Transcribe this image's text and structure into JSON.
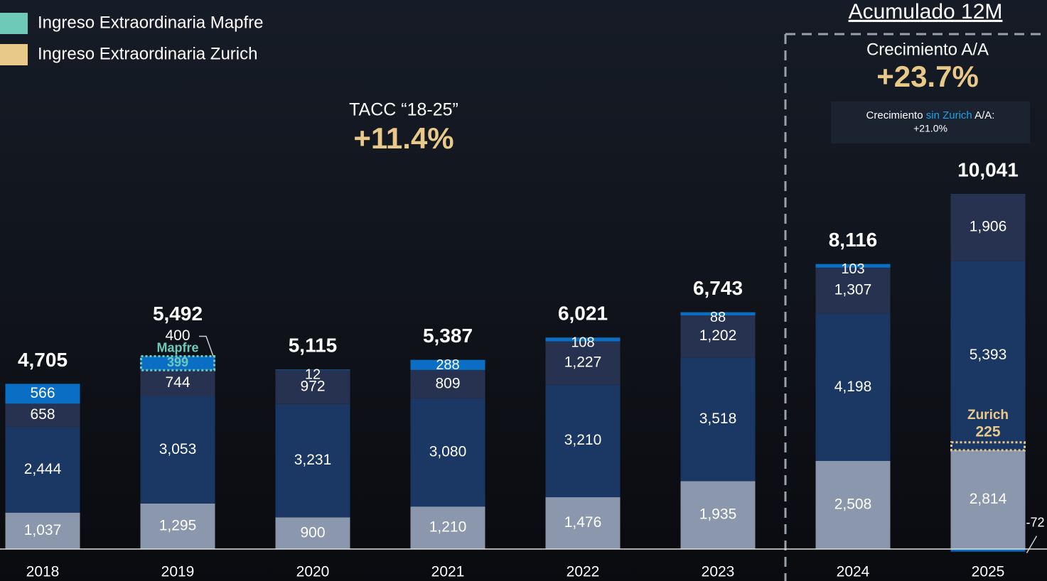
{
  "chart_data": {
    "type": "bar",
    "stacked": true,
    "categories": [
      "2018",
      "2019",
      "2020",
      "2021",
      "2022",
      "2023",
      "2024",
      "2025"
    ],
    "series": [
      {
        "color": "#8b97ac",
        "values": [
          1037,
          1295,
          900,
          1210,
          1476,
          1935,
          2508,
          2814
        ],
        "value_labels": [
          "1,037",
          "1,295",
          "900",
          "1,210",
          "1,476",
          "1,935",
          "2,508",
          "2,814"
        ]
      },
      {
        "color": "#1b3763",
        "values": [
          2444,
          3053,
          3231,
          3080,
          3210,
          3518,
          4198,
          5393
        ],
        "value_labels": [
          "2,444",
          "3,053",
          "3,231",
          "3,080",
          "3,210",
          "3,518",
          "4,198",
          "5,393"
        ]
      },
      {
        "color": "#26324f",
        "values": [
          658,
          744,
          972,
          809,
          1227,
          1202,
          1307,
          1906
        ],
        "value_labels": [
          "658",
          "744",
          "972",
          "809",
          "1,227",
          "1,202",
          "1,307",
          "1,906"
        ]
      },
      {
        "color": "#0a6fc4",
        "values": [
          566,
          400,
          12,
          288,
          108,
          88,
          103,
          -72
        ]
      }
    ],
    "extraordinary": [
      {
        "name": "Ingreso Extraordinaria Mapfre",
        "label": "Mapfre",
        "color": "#6ec9b8",
        "values": [
          null,
          399,
          null,
          null,
          null,
          null,
          null,
          null
        ]
      },
      {
        "name": "Ingreso Extraordinaria Zurich",
        "label": "Zurich",
        "color": "#e8c98a",
        "values": [
          null,
          null,
          null,
          null,
          null,
          null,
          null,
          225
        ]
      }
    ],
    "totals": {
      "values": [
        4705,
        5492,
        5115,
        5387,
        6021,
        6743,
        8116,
        10041
      ],
      "value_labels": [
        "4,705",
        "5,492",
        "5,115",
        "5,387",
        "6,021",
        "6,743",
        "8,116",
        "10,041"
      ]
    },
    "tacc": {
      "label": "TACC “18-25”",
      "value": "+11.4%"
    },
    "panel": {
      "title": "Acumulado 12M",
      "growth_label": "Crecimiento A/A",
      "growth": "+23.7%",
      "note": [
        "Crecimiento ",
        "sin Zurich",
        " A/A:"
      ],
      "note_value": "+21.0%"
    }
  }
}
